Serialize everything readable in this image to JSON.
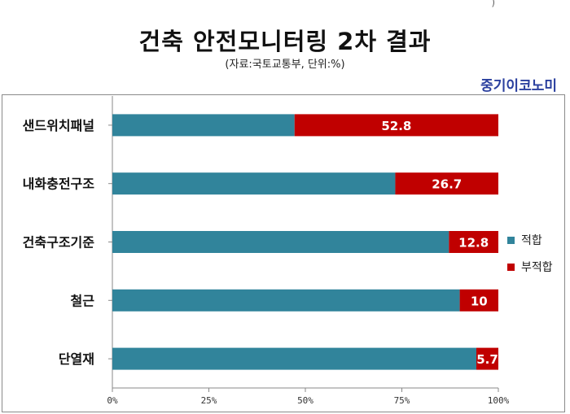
{
  "header": {
    "title": "건축 안전모니터링 2차 결과",
    "source": "(자료:국토교통부, 단위:%)",
    "brand": "중기이코노미",
    "top_mark": ")"
  },
  "colors": {
    "pass": "#31849b",
    "fail": "#c00000",
    "axis": "#888888"
  },
  "chart_data": {
    "type": "bar",
    "orientation": "horizontal",
    "stacked": true,
    "percent": true,
    "categories": [
      "샌드위치패널",
      "내화충전구조",
      "건축구조기준",
      "철근",
      "단열재"
    ],
    "series": [
      {
        "name": "적합",
        "values": [
          47.2,
          73.3,
          87.2,
          90,
          94.3
        ]
      },
      {
        "name": "부적합",
        "values": [
          52.8,
          26.7,
          12.8,
          10,
          5.7
        ]
      }
    ],
    "data_labels": [
      "52.8",
      "26.7",
      "12.8",
      "10",
      "5.7"
    ],
    "xlim": [
      0,
      100
    ],
    "xticks": [
      "0%",
      "25%",
      "50%",
      "75%",
      "100%"
    ],
    "legend_position": "right",
    "grid": false
  }
}
